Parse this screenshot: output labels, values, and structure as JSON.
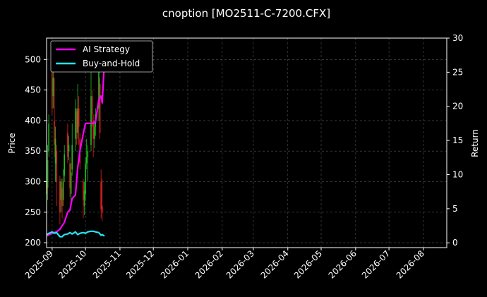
{
  "chart_data": {
    "type": "line",
    "title": "cnoption [MO2511-C-7200.CFX]",
    "ylabel": "Price",
    "y2label": "Return",
    "ylim": [
      192,
      535
    ],
    "y2lim": [
      -0.7,
      30
    ],
    "yticks": [
      200,
      250,
      300,
      350,
      400,
      450,
      500
    ],
    "y2ticks": [
      0,
      5,
      10,
      15,
      20,
      25,
      30
    ],
    "xlim": [
      "2025-08-27",
      "2026-08-22"
    ],
    "xticks": [
      "2025-09",
      "2025-10",
      "2025-11",
      "2025-12",
      "2026-01",
      "2026-02",
      "2026-03",
      "2026-04",
      "2026-05",
      "2026-06",
      "2026-07",
      "2026-08"
    ],
    "grid": true,
    "legend_position": "top-left",
    "colors": {
      "background": "#000000",
      "grid": "#555555",
      "up": "#22bb22",
      "down": "#dd2222",
      "ai": "#ff00ff",
      "bh": "#22e5f5"
    },
    "series": [
      {
        "name": "AI Strategy",
        "axis": "right",
        "x": [
          "2025-08-27",
          "2025-08-29",
          "2025-09-01",
          "2025-09-03",
          "2025-09-05",
          "2025-09-08",
          "2025-09-10",
          "2025-09-12",
          "2025-09-15",
          "2025-09-17",
          "2025-09-19",
          "2025-09-22",
          "2025-09-24",
          "2025-09-26",
          "2025-09-29",
          "2025-10-01",
          "2025-10-03",
          "2025-10-06",
          "2025-10-08",
          "2025-10-10",
          "2025-10-13",
          "2025-10-15",
          "2025-10-16",
          "2025-10-18"
        ],
        "values": [
          1.0,
          1.2,
          1.4,
          1.5,
          1.6,
          2.0,
          2.5,
          3.0,
          4.5,
          4.8,
          6.5,
          7.0,
          11.0,
          13.5,
          16.0,
          17.5,
          17.5,
          17.5,
          17.5,
          17.7,
          21.0,
          21.5,
          20.5,
          26.5
        ]
      },
      {
        "name": "Buy-and-Hold",
        "axis": "right",
        "x": [
          "2025-08-27",
          "2025-08-29",
          "2025-09-01",
          "2025-09-03",
          "2025-09-05",
          "2025-09-08",
          "2025-09-10",
          "2025-09-12",
          "2025-09-15",
          "2025-09-17",
          "2025-09-19",
          "2025-09-22",
          "2025-09-24",
          "2025-09-26",
          "2025-09-29",
          "2025-10-01",
          "2025-10-03",
          "2025-10-06",
          "2025-10-08",
          "2025-10-10",
          "2025-10-13",
          "2025-10-15",
          "2025-10-16",
          "2025-10-18"
        ],
        "values": [
          1.2,
          1.4,
          1.6,
          1.4,
          1.5,
          0.9,
          0.9,
          1.2,
          1.3,
          1.5,
          1.3,
          1.6,
          1.2,
          1.4,
          1.5,
          1.4,
          1.6,
          1.7,
          1.7,
          1.6,
          1.5,
          1.1,
          1.2,
          1.0
        ]
      }
    ],
    "candles": [
      {
        "d": "2025-08-27",
        "o": 300,
        "c": 280,
        "h": 350,
        "l": 265
      },
      {
        "d": "2025-08-28",
        "o": 290,
        "c": 335,
        "h": 360,
        "l": 270
      },
      {
        "d": "2025-08-29",
        "o": 350,
        "c": 395,
        "h": 410,
        "l": 340
      },
      {
        "d": "2025-09-01",
        "o": 480,
        "c": 420,
        "h": 500,
        "l": 410
      },
      {
        "d": "2025-09-02",
        "o": 440,
        "c": 470,
        "h": 495,
        "l": 420
      },
      {
        "d": "2025-09-03",
        "o": 400,
        "c": 360,
        "h": 470,
        "l": 340
      },
      {
        "d": "2025-09-04",
        "o": 330,
        "c": 370,
        "h": 390,
        "l": 300
      },
      {
        "d": "2025-09-05",
        "o": 350,
        "c": 300,
        "h": 360,
        "l": 260
      },
      {
        "d": "2025-09-08",
        "o": 300,
        "c": 250,
        "h": 310,
        "l": 230
      },
      {
        "d": "2025-09-09",
        "o": 270,
        "c": 300,
        "h": 305,
        "l": 250
      },
      {
        "d": "2025-09-10",
        "o": 290,
        "c": 260,
        "h": 305,
        "l": 240
      },
      {
        "d": "2025-09-11",
        "o": 270,
        "c": 300,
        "h": 320,
        "l": 260
      },
      {
        "d": "2025-09-12",
        "o": 310,
        "c": 345,
        "h": 360,
        "l": 300
      },
      {
        "d": "2025-09-15",
        "o": 380,
        "c": 340,
        "h": 395,
        "l": 330
      },
      {
        "d": "2025-09-16",
        "o": 350,
        "c": 360,
        "h": 375,
        "l": 335
      },
      {
        "d": "2025-09-17",
        "o": 330,
        "c": 290,
        "h": 340,
        "l": 275
      },
      {
        "d": "2025-09-18",
        "o": 280,
        "c": 315,
        "h": 330,
        "l": 265
      },
      {
        "d": "2025-09-19",
        "o": 320,
        "c": 360,
        "h": 395,
        "l": 310
      },
      {
        "d": "2025-09-22",
        "o": 370,
        "c": 420,
        "h": 435,
        "l": 350
      },
      {
        "d": "2025-09-23",
        "o": 415,
        "c": 380,
        "h": 420,
        "l": 360
      },
      {
        "d": "2025-09-24",
        "o": 380,
        "c": 420,
        "h": 460,
        "l": 370
      },
      {
        "d": "2025-09-25",
        "o": 420,
        "c": 390,
        "h": 440,
        "l": 360
      },
      {
        "d": "2025-09-26",
        "o": 370,
        "c": 330,
        "h": 380,
        "l": 320
      },
      {
        "d": "2025-09-29",
        "o": 300,
        "c": 270,
        "h": 305,
        "l": 240
      },
      {
        "d": "2025-09-30",
        "o": 260,
        "c": 285,
        "h": 300,
        "l": 245
      },
      {
        "d": "2025-10-01",
        "o": 280,
        "c": 330,
        "h": 340,
        "l": 270
      },
      {
        "d": "2025-10-02",
        "o": 330,
        "c": 340,
        "h": 370,
        "l": 320
      },
      {
        "d": "2025-10-03",
        "o": 340,
        "c": 350,
        "h": 360,
        "l": 300
      },
      {
        "d": "2025-10-06",
        "o": 360,
        "c": 440,
        "h": 480,
        "l": 350
      },
      {
        "d": "2025-10-07",
        "o": 440,
        "c": 410,
        "h": 450,
        "l": 390
      },
      {
        "d": "2025-10-08",
        "o": 400,
        "c": 370,
        "h": 410,
        "l": 340
      },
      {
        "d": "2025-10-09",
        "o": 370,
        "c": 390,
        "h": 400,
        "l": 355
      },
      {
        "d": "2025-10-10",
        "o": 390,
        "c": 410,
        "h": 420,
        "l": 375
      },
      {
        "d": "2025-10-13",
        "o": 420,
        "c": 490,
        "h": 500,
        "l": 400
      },
      {
        "d": "2025-10-14",
        "o": 460,
        "c": 380,
        "h": 470,
        "l": 370
      },
      {
        "d": "2025-10-15",
        "o": 300,
        "c": 255,
        "h": 320,
        "l": 240
      },
      {
        "d": "2025-10-16",
        "o": 260,
        "c": 250,
        "h": 305,
        "l": 235
      }
    ]
  }
}
